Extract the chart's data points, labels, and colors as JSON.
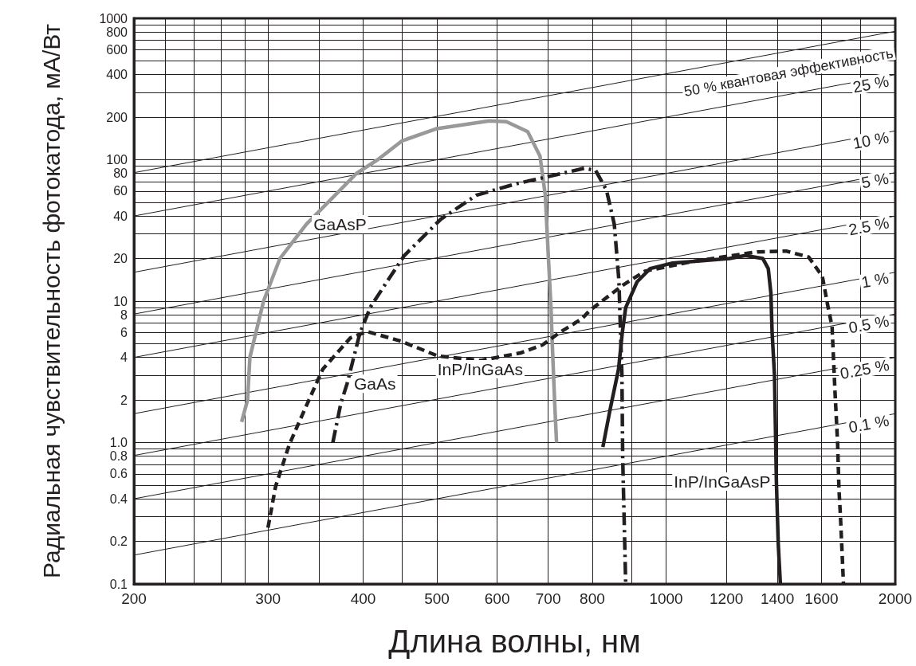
{
  "chart_data": {
    "type": "line",
    "xlabel": "Длина волны, нм",
    "ylabel": "Радиальная чувствительность фотокатода, мА/Вт",
    "log": "xy",
    "grid": true,
    "marker": "none",
    "xlim": [
      200,
      2000
    ],
    "ylim": [
      0.1,
      1000
    ],
    "xticks": [
      200,
      {
        "value": 220,
        "label": null
      },
      {
        "value": 240,
        "label": null
      },
      {
        "value": 260,
        "label": null
      },
      {
        "value": 280,
        "label": null
      },
      300,
      {
        "value": 350,
        "label": null
      },
      400,
      {
        "value": 450,
        "label": null
      },
      500,
      600,
      700,
      800,
      {
        "value": 900,
        "label": null
      },
      1000,
      1200,
      1400,
      1600,
      {
        "value": 1800,
        "label": null
      },
      2000
    ],
    "yticks": [
      0.1,
      0.2,
      {
        "value": 0.3,
        "label": null
      },
      0.4,
      {
        "value": 0.5,
        "label": null
      },
      0.6,
      {
        "value": 0.7,
        "label": null
      },
      0.8,
      {
        "value": 0.9,
        "label": null
      },
      {
        "value": 1,
        "label": "1.0"
      },
      2,
      {
        "value": 3,
        "label": null
      },
      4,
      {
        "value": 5,
        "label": null
      },
      6,
      {
        "value": 7,
        "label": null
      },
      8,
      {
        "value": 9,
        "label": null
      },
      10,
      20,
      {
        "value": 30,
        "label": null
      },
      40,
      {
        "value": 50,
        "label": null
      },
      60,
      {
        "value": 70,
        "label": null
      },
      80,
      {
        "value": 90,
        "label": null
      },
      100,
      200,
      {
        "value": 300,
        "label": null
      },
      400,
      {
        "value": 500,
        "label": null
      },
      600,
      {
        "value": 700,
        "label": null
      },
      800,
      {
        "value": 900,
        "label": null
      },
      1000
    ],
    "series": [
      {
        "name": "GaAsP",
        "color": "#999999",
        "line_style": "solid",
        "x": [
          277,
          282,
          284,
          296,
          311,
          337,
          372,
          392,
          418,
          450,
          500,
          586,
          617,
          658,
          683,
          694,
          700,
          706,
          709,
          714,
          718
        ],
        "values": [
          1.4,
          2,
          4,
          10,
          20,
          35,
          60,
          80,
          100,
          136,
          166,
          188,
          186,
          158,
          106,
          56,
          22,
          9,
          4.8,
          1.9,
          1.0
        ]
      },
      {
        "name": "GaAs",
        "color": "#231f20",
        "line_style": "dashdot",
        "x": [
          365,
          374,
          381,
          396,
          409,
          431,
          453,
          506,
          563,
          638,
          670,
          781,
          808,
          835,
          855,
          867,
          871,
          875,
          877,
          885
        ],
        "values": [
          1.0,
          1.9,
          2.6,
          5.9,
          9.1,
          14,
          21,
          38,
          56,
          68,
          72,
          87,
          84,
          61,
          35,
          14,
          6.3,
          3.0,
          0.78,
          0.1
        ]
      },
      {
        "name": "InP/InGaAsP",
        "color": "#231f20",
        "line_style": "solid",
        "x": [
          826,
          844,
          866,
          876,
          885,
          916,
          953,
          1020,
          1211,
          1271,
          1340,
          1362,
          1373,
          1378,
          1388,
          1396,
          1404,
          1413
        ],
        "values": [
          0.93,
          1.7,
          3.3,
          6.0,
          9.0,
          13.7,
          17,
          18.6,
          20,
          21,
          20,
          17,
          11.4,
          6.0,
          3.0,
          0.53,
          0.19,
          0.1
        ]
      },
      {
        "name": "InP/InGaAs",
        "color": "#231f20",
        "line_style": "dashed",
        "x": [
          300,
          307,
          320,
          335,
          354,
          385,
          405,
          449,
          501,
          570,
          644,
          688,
          725,
          775,
          794,
          878,
          938,
          1080,
          1317,
          1438,
          1539,
          1604,
          1630,
          1652,
          1666,
          1680,
          1687,
          1694,
          1710
        ],
        "values": [
          0.25,
          0.49,
          0.97,
          1.7,
          3.3,
          5.5,
          6.1,
          5.2,
          4.1,
          3.8,
          4.3,
          4.9,
          6.0,
          7.5,
          8.6,
          13,
          16.3,
          19,
          22.3,
          22.6,
          20.5,
          15,
          9.4,
          6.6,
          2.4,
          0.98,
          0.46,
          0.31,
          0.1
        ]
      },
      {
        "name": "50 % квантовая эффективность",
        "color": "#231f20",
        "line_style": "solid",
        "x": [
          200,
          2000
        ],
        "values": [
          81,
          810
        ]
      },
      {
        "name": "25 %",
        "color": "#231f20",
        "line_style": "solid",
        "x": [
          200,
          2000
        ],
        "values": [
          40,
          400
        ]
      },
      {
        "name": "10 %",
        "color": "#231f20",
        "line_style": "solid",
        "x": [
          200,
          2000
        ],
        "values": [
          16,
          160
        ]
      },
      {
        "name": "5 %",
        "color": "#231f20",
        "line_style": "solid",
        "x": [
          200,
          2000
        ],
        "values": [
          8.1,
          81
        ]
      },
      {
        "name": "2.5 %",
        "color": "#231f20",
        "line_style": "solid",
        "x": [
          200,
          2000
        ],
        "values": [
          4.0,
          40
        ]
      },
      {
        "name": "1 %",
        "color": "#231f20",
        "line_style": "solid",
        "x": [
          200,
          2000
        ],
        "values": [
          1.6,
          16
        ]
      },
      {
        "name": "0.5 %",
        "color": "#231f20",
        "line_style": "solid",
        "x": [
          200,
          2000
        ],
        "values": [
          0.81,
          8.1
        ]
      },
      {
        "name": "0.25 %",
        "color": "#231f20",
        "line_style": "solid",
        "x": [
          200,
          2000
        ],
        "values": [
          0.4,
          4.0
        ]
      },
      {
        "name": "0.1 %",
        "color": "#231f20",
        "line_style": "solid",
        "x": [
          200,
          2000
        ],
        "values": [
          0.16,
          1.6
        ]
      }
    ]
  }
}
